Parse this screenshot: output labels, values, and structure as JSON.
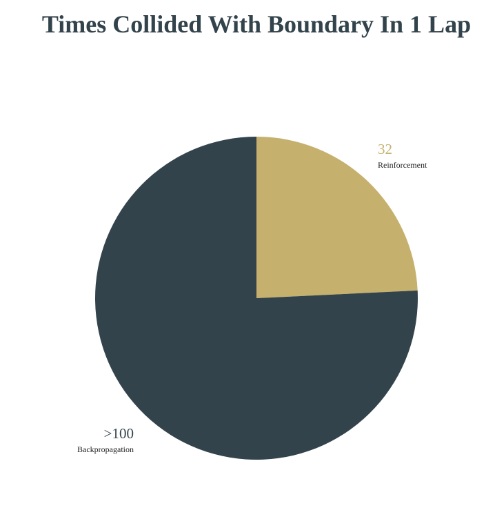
{
  "chart_data": {
    "type": "pie",
    "title": "Times Collided With Boundary In 1 Lap",
    "slices": [
      {
        "label": "Reinforcement",
        "value": 32,
        "display_value": "32",
        "color": "#c6b06e"
      },
      {
        "label": "Backpropagation",
        "value": 100,
        "display_value": ">100",
        "color": "#33434c"
      }
    ],
    "start_angle_deg": 0,
    "direction": "clockwise",
    "legend": "none",
    "value_label_colors": {
      "Reinforcement": "#c6b06e",
      "Backpropagation": "#33434c"
    }
  }
}
